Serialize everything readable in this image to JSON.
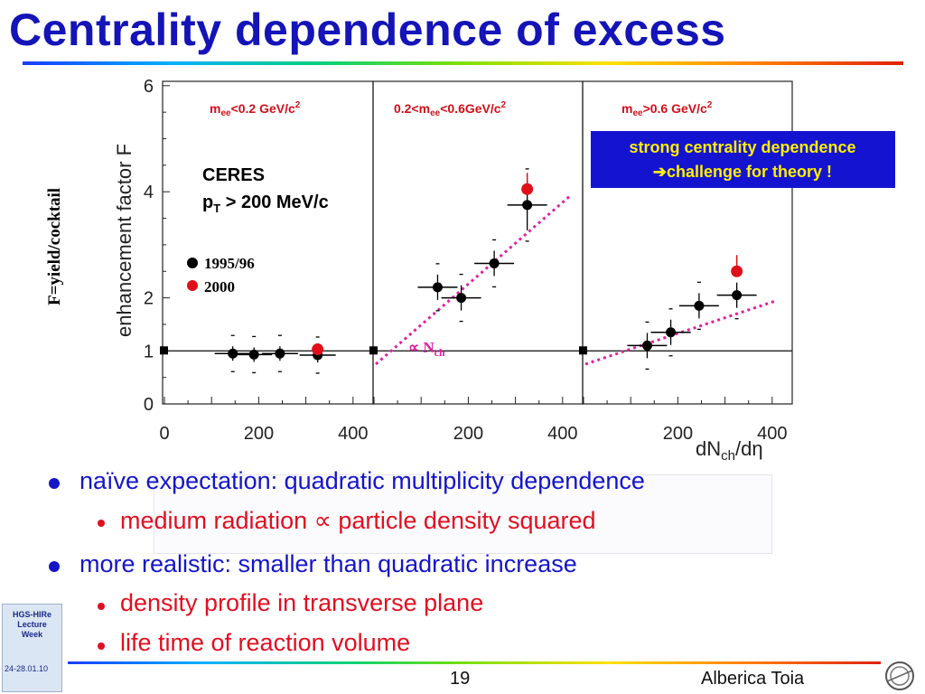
{
  "slide": {
    "title": "Centrality dependence of excess",
    "page_number": "19",
    "author": "Alberica Toia"
  },
  "logo": {
    "lines": [
      "HGS-HIRe",
      "Lecture",
      "Week"
    ],
    "dates": "24-28.01.10"
  },
  "bullets": [
    {
      "text": "naïve expectation: quadratic multiplicity dependence",
      "sub": [
        "medium radiation ∝ particle density squared"
      ]
    },
    {
      "text": "more realistic: smaller than quadratic increase",
      "sub": [
        "density profile in transverse plane",
        "life time of reaction volume"
      ]
    }
  ],
  "chart_data": {
    "type": "scatter",
    "ylabel": "enhancement factor  F",
    "ylabel_side": "F=yield/cocktail",
    "xlabel": "dNch/dη",
    "ylim": [
      0,
      6
    ],
    "yticks": [
      "0",
      "1",
      "2",
      "4",
      "6"
    ],
    "xlim": [
      0,
      460
    ],
    "xticks": [
      "0",
      "200",
      "400"
    ],
    "experiment": "CERES",
    "cut": "pT > 200 MeV/c",
    "legend": [
      "1995/96",
      "2000"
    ],
    "callout": {
      "line1": "strong centrality dependence",
      "line2": "challenge for theory !",
      "arrow": "➔"
    },
    "fit_label": "∝ Nch",
    "panels": [
      {
        "label": "mee<0.2 GeV/c2",
        "series": [
          {
            "name": "1995/96",
            "points": [
              [
                145,
                0.95
              ],
              [
                190,
                0.93
              ],
              [
                245,
                0.95
              ],
              [
                325,
                0.92
              ]
            ]
          },
          {
            "name": "2000",
            "points": [
              [
                325,
                1.03
              ]
            ]
          }
        ]
      },
      {
        "label": "0.2<mee<0.6GeV/c2",
        "series": [
          {
            "name": "1995/96",
            "points": [
              [
                135,
                2.2
              ],
              [
                185,
                2.0
              ],
              [
                255,
                2.65
              ],
              [
                325,
                3.75
              ]
            ]
          },
          {
            "name": "2000",
            "points": [
              [
                325,
                4.05
              ]
            ]
          }
        ]
      },
      {
        "label": "mee>0.6 GeV/c2",
        "series": [
          {
            "name": "1995/96",
            "points": [
              [
                135,
                1.1
              ],
              [
                185,
                1.35
              ],
              [
                245,
                1.85
              ],
              [
                325,
                2.05
              ]
            ]
          },
          {
            "name": "2000",
            "points": [
              [
                325,
                2.5
              ]
            ]
          }
        ]
      }
    ]
  }
}
